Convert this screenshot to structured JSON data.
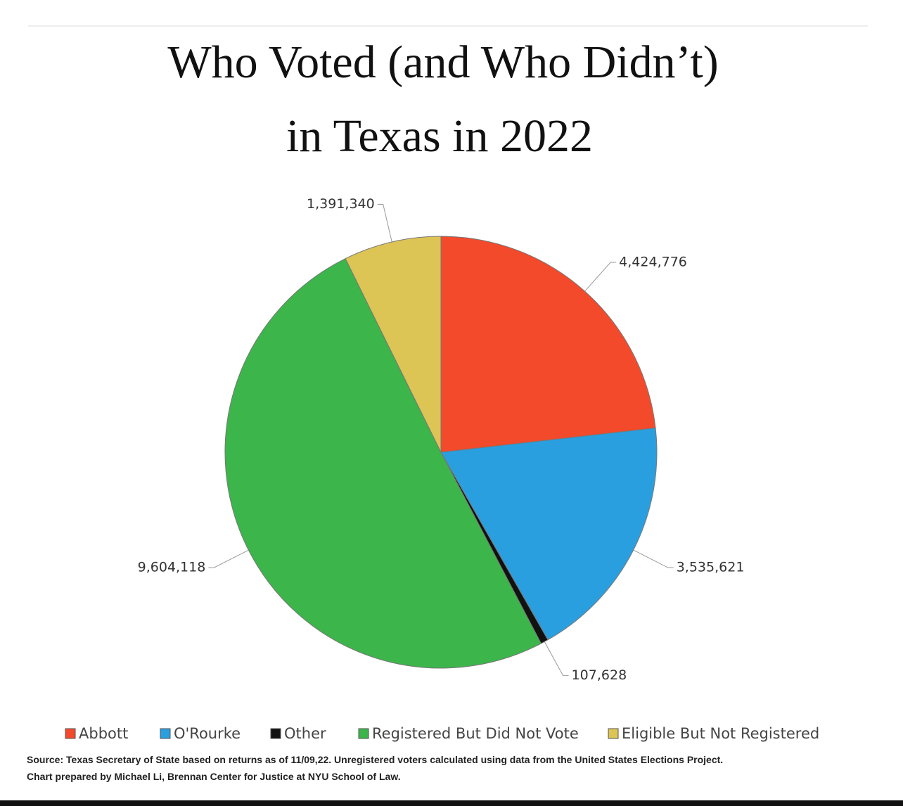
{
  "chart_data": {
    "type": "pie",
    "title": [
      "Who Voted (and Who Didn’t)",
      "in Texas in 2022"
    ],
    "categories": [
      "Abbott",
      "O'Rourke",
      "Other",
      "Registered But Did Not Vote",
      "Eligible But Not Registered"
    ],
    "values": [
      4424776,
      3535621,
      107628,
      9604118,
      1391340
    ],
    "value_labels": [
      "4,424,776",
      "3,535,621",
      "107,628",
      "9,604,118",
      "1,391,340"
    ],
    "colors": [
      "#f24a2b",
      "#2a9fdf",
      "#111111",
      "#3cb54a",
      "#dcc455"
    ],
    "legend": "bottom",
    "notes": [
      "Source: Texas Secretary of State based on returns as of 11/09,22. Unregistered voters calculated using data from the United States Elections Project.",
      "Chart prepared by Michael Li, Brennan Center for Justice at NYU School of Law."
    ]
  }
}
